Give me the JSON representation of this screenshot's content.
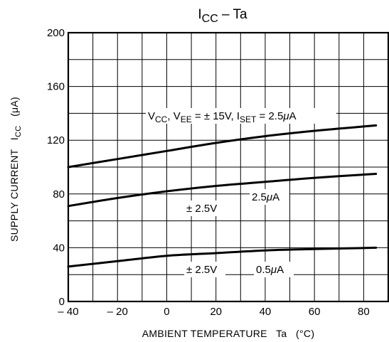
{
  "chart_data": {
    "type": "line",
    "title": {
      "main": "I",
      "sub": "CC",
      "rest": " – Ta"
    },
    "xlabel": "AMBIENT TEMPERATURE   Ta   (°C)",
    "ylabel": {
      "pre": "SUPPLY CURRENT   I",
      "sub": "CC",
      "post": "   (μA)"
    },
    "xlim": [
      -40,
      90
    ],
    "ylim": [
      0,
      200
    ],
    "x_ticks": [
      -40,
      -20,
      0,
      20,
      40,
      60,
      80
    ],
    "x_tick_labels": [
      "– 40",
      "– 20",
      "0",
      "20",
      "40",
      "60",
      "80"
    ],
    "y_ticks": [
      0,
      40,
      80,
      120,
      160,
      200
    ],
    "y_tick_labels": [
      "0",
      "40",
      "80",
      "120",
      "160",
      "200"
    ],
    "x_minor_step": 10,
    "y_minor_step": 20,
    "grid": true,
    "series": [
      {
        "x": [
          -40,
          -20,
          0,
          20,
          40,
          60,
          85
        ],
        "values": [
          100,
          106,
          112,
          118,
          123,
          127,
          131
        ]
      },
      {
        "x": [
          -40,
          -20,
          0,
          20,
          40,
          60,
          85
        ],
        "values": [
          71,
          77,
          82,
          86,
          89,
          92,
          95
        ]
      },
      {
        "x": [
          -40,
          -20,
          0,
          20,
          40,
          60,
          85
        ],
        "values": [
          26,
          30,
          34,
          36,
          38,
          39,
          40
        ]
      }
    ],
    "annotations": [
      {
        "text": "V_CC, V_EE = ± 15V,  I_SET = 2.5μA",
        "parts": [
          {
            "t": "V"
          },
          {
            "t": "CC",
            "sub": true
          },
          {
            "t": ", V"
          },
          {
            "t": "EE",
            "sub": true
          },
          {
            "t": " = ± 15V,  I"
          },
          {
            "t": "SET",
            "sub": true
          },
          {
            "t": " = 2.5"
          },
          {
            "t": "μ",
            "italic": true
          },
          {
            "t": "A"
          }
        ]
      },
      {
        "text": "± 2.5V",
        "parts": [
          {
            "t": "± 2.5V"
          }
        ]
      },
      {
        "text": "2.5μA",
        "parts": [
          {
            "t": "2.5"
          },
          {
            "t": "μ",
            "italic": true
          },
          {
            "t": "A"
          }
        ]
      },
      {
        "text": "± 2.5V",
        "parts": [
          {
            "t": "± 2.5V"
          }
        ]
      },
      {
        "text": "0.5μA",
        "parts": [
          {
            "t": "0.5"
          },
          {
            "t": "μ",
            "italic": true
          },
          {
            "t": "A"
          }
        ]
      }
    ]
  }
}
